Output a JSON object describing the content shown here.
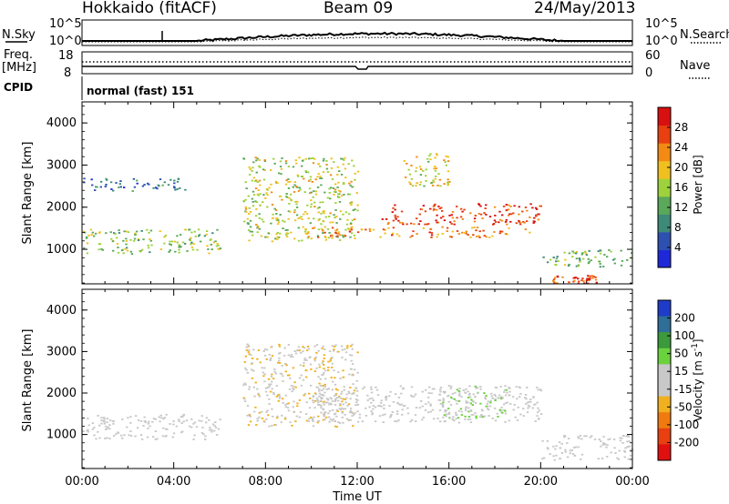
{
  "header": {
    "station": "Hokkaido (fitACF)",
    "beam": "Beam 09",
    "date": "24/May/2013"
  },
  "sky_panel": {
    "left_label": "N.Sky",
    "right_label": "N.Search",
    "tick_top": "10^5",
    "tick_bottom": "10^0",
    "right_tick_top": "10^5",
    "right_tick_bottom": "10^0"
  },
  "freq_panel": {
    "left_label_1": "Freq.",
    "left_label_2": "[MHz]",
    "left_tick_top": "18",
    "left_tick_bottom": "8",
    "right_label": "Nave",
    "right_tick_top": "60",
    "right_tick_bottom": "0"
  },
  "cpid_panel": {
    "label": "CPID",
    "mode": "normal (fast) 151"
  },
  "chart_data": [
    {
      "type": "heatmap",
      "title": "",
      "xlabel": "Time UT",
      "ylabel": "Slant Range [km]",
      "xticks": [
        "00:00",
        "04:00",
        "08:00",
        "12:00",
        "16:00",
        "20:00",
        "00:00"
      ],
      "yticks": [
        "1000",
        "2000",
        "3000",
        "4000"
      ],
      "ylim": [
        180,
        4500
      ],
      "colorbar": {
        "label": "Power [dB]",
        "ticks": [
          "4",
          "8",
          "12",
          "16",
          "20",
          "24",
          "28"
        ],
        "range": [
          0,
          30
        ],
        "colors": [
          "#1e28d8",
          "#2e50b0",
          "#3e8a78",
          "#5aa85a",
          "#9ed23c",
          "#f0c020",
          "#f28a14",
          "#e84010",
          "#d81010"
        ]
      },
      "echo_bands": [
        {
          "t_start": 0.0,
          "t_end": 6.0,
          "r_start": 900,
          "r_end": 1500,
          "power_db": 14
        },
        {
          "t_start": 0.0,
          "t_end": 4.5,
          "r_start": 2400,
          "r_end": 2700,
          "power_db": 6
        },
        {
          "t_start": 7.0,
          "t_end": 12.0,
          "r_start": 1200,
          "r_end": 3200,
          "power_db": 16
        },
        {
          "t_start": 10.0,
          "t_end": 19.5,
          "r_start": 1300,
          "r_end": 1550,
          "power_db": 22
        },
        {
          "t_start": 13.0,
          "t_end": 20.0,
          "r_start": 1600,
          "r_end": 2100,
          "power_db": 26
        },
        {
          "t_start": 14.0,
          "t_end": 16.0,
          "r_start": 2500,
          "r_end": 3300,
          "power_db": 18
        },
        {
          "t_start": 20.0,
          "t_end": 24.0,
          "r_start": 600,
          "r_end": 1000,
          "power_db": 12
        },
        {
          "t_start": 20.5,
          "t_end": 22.5,
          "r_start": 200,
          "r_end": 400,
          "power_db": 26
        }
      ]
    },
    {
      "type": "heatmap",
      "title": "",
      "xlabel": "Time UT",
      "ylabel": "Slant Range [km]",
      "xticks": [
        "00:00",
        "04:00",
        "08:00",
        "12:00",
        "16:00",
        "20:00",
        "00:00"
      ],
      "yticks": [
        "1000",
        "2000",
        "3000",
        "4000"
      ],
      "ylim": [
        180,
        4500
      ],
      "colorbar": {
        "label": "Velocity [m s^-1]",
        "ticks": [
          "200",
          "100",
          "50",
          "15",
          "-15",
          "-50",
          "-100",
          "-200"
        ],
        "range": [
          -250,
          250
        ],
        "colors": [
          "#1f3cc8",
          "#2f6e96",
          "#3c9a3c",
          "#6ad23c",
          "#c8c8c8",
          "#c8c8c8",
          "#f0b020",
          "#f07a10",
          "#e84010",
          "#e01010"
        ]
      },
      "echo_bands": [
        {
          "t_start": 0.0,
          "t_end": 6.0,
          "r_start": 900,
          "r_end": 1500,
          "velocity": 0
        },
        {
          "t_start": 7.0,
          "t_end": 12.0,
          "r_start": 1200,
          "r_end": 3200,
          "velocity": -40
        },
        {
          "t_start": 10.0,
          "t_end": 20.0,
          "r_start": 1300,
          "r_end": 2200,
          "velocity": 0
        },
        {
          "t_start": 15.5,
          "t_end": 18.5,
          "r_start": 1400,
          "r_end": 2200,
          "velocity": 40
        },
        {
          "t_start": 20.0,
          "t_end": 24.0,
          "r_start": 400,
          "r_end": 1000,
          "velocity": 0
        }
      ]
    }
  ]
}
